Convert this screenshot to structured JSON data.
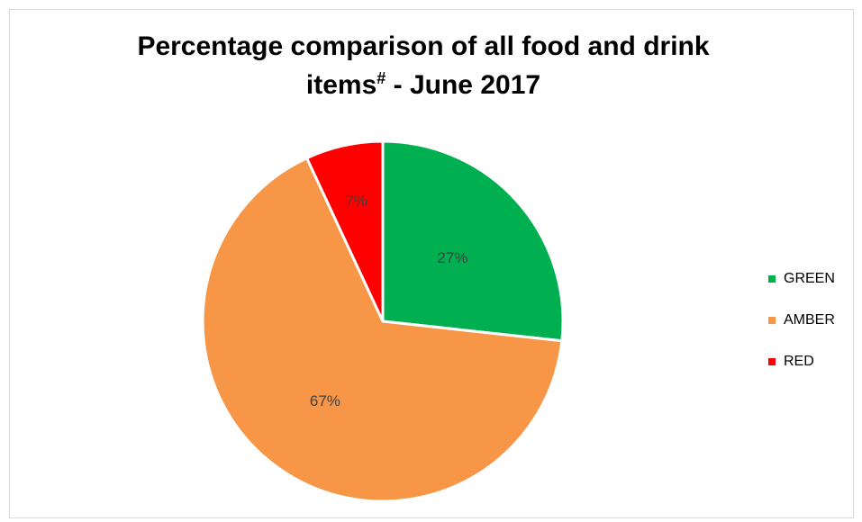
{
  "chart_data": {
    "type": "pie",
    "title_main": "Percentage comparison of all food and drink",
    "title_line2": "items",
    "title_sup": "#",
    "title_suffix": " - June 2017",
    "slices": [
      {
        "name": "GREEN",
        "value": 27,
        "label": "27%",
        "color": "#00b050"
      },
      {
        "name": "AMBER",
        "value": 67,
        "label": "67%",
        "color": "#f79646"
      },
      {
        "name": "RED",
        "value": 7,
        "label": "7%",
        "color": "#ff0000"
      }
    ],
    "legend_position": "right"
  }
}
